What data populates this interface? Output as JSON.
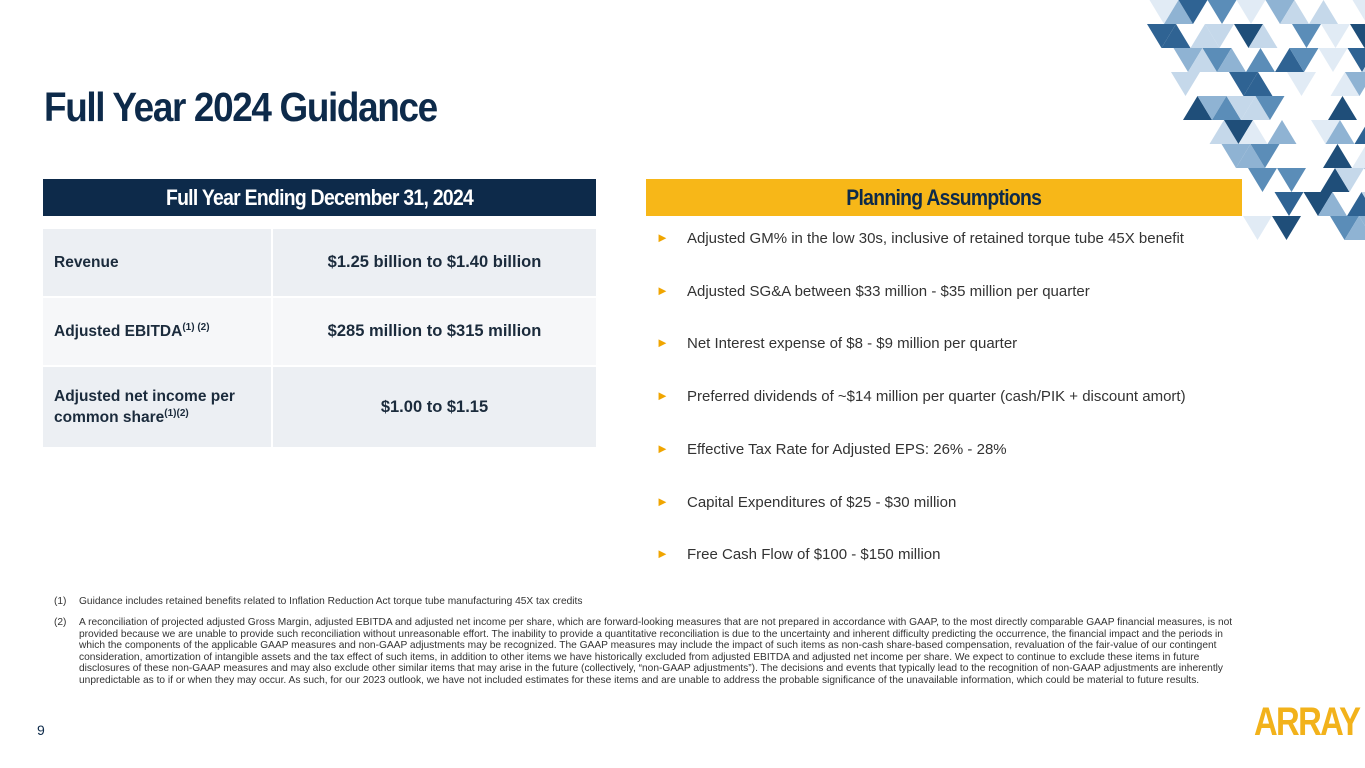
{
  "header": {
    "title": "Full Year 2024 Guidance"
  },
  "guidance": {
    "heading": "Full Year Ending December 31, 2024",
    "rows": [
      {
        "label": "Revenue",
        "value": "$1.25 billion to $1.40 billion"
      },
      {
        "label": "Adjusted EBITDA",
        "sup": "(1) (2)",
        "value": "$285 million to $315 million"
      },
      {
        "label": "Adjusted net income per common share",
        "sup": "(1)(2)",
        "value": "$1.00 to $1.15"
      }
    ]
  },
  "assumptions": {
    "heading": "Planning Assumptions",
    "items": [
      "Adjusted GM% in the low 30s, inclusive of retained torque tube 45X benefit",
      "Adjusted SG&A between $33 million - $35 million per quarter",
      "Net Interest expense of $8 - $9 million per quarter",
      "Preferred dividends of ~$14 million per quarter (cash/PIK + discount amort)",
      "Effective Tax Rate for Adjusted EPS: 26% - 28%",
      "Capital Expenditures of $25 - $30 million",
      "Free Cash Flow of $100 - $150 million"
    ]
  },
  "footnotes": [
    {
      "marker": "(1)",
      "text": "Guidance includes retained benefits related to Inflation Reduction Act torque tube manufacturing 45X tax credits"
    },
    {
      "marker": "(2)",
      "text": "A reconciliation of projected adjusted Gross Margin, adjusted EBITDA and adjusted net income per share, which are forward-looking measures that are not prepared in accordance with GAAP, to the most directly comparable GAAP financial measures, is not provided because we are unable to provide such reconciliation without unreasonable effort. The inability to provide a quantitative reconciliation is due to the uncertainty and inherent difficulty predicting the occurrence, the financial impact and the periods in which the components of the applicable GAAP measures and non-GAAP adjustments may be recognized. The GAAP measures may include the impact of such items as non-cash share-based compensation, revaluation of the fair-value of our contingent consideration, amortization of intangible assets and the tax effect of such items, in addition to other items we have historically excluded from adjusted EBITDA and adjusted net income per share. We expect to continue to exclude these items in future disclosures of these non-GAAP measures and may also exclude other similar items that may arise in the future (collectively, “non-GAAP adjustments”). The decisions and events that typically lead to the recognition of non-GAAP adjustments are inherently unpredictable as to if or when they may occur. As such, for our 2023 outlook, we have not included estimates for these items and are unable to address the probable significance of the unavailable information, which could be material to future results."
    }
  ],
  "footer": {
    "page": "9",
    "logo": "ARRAY"
  }
}
